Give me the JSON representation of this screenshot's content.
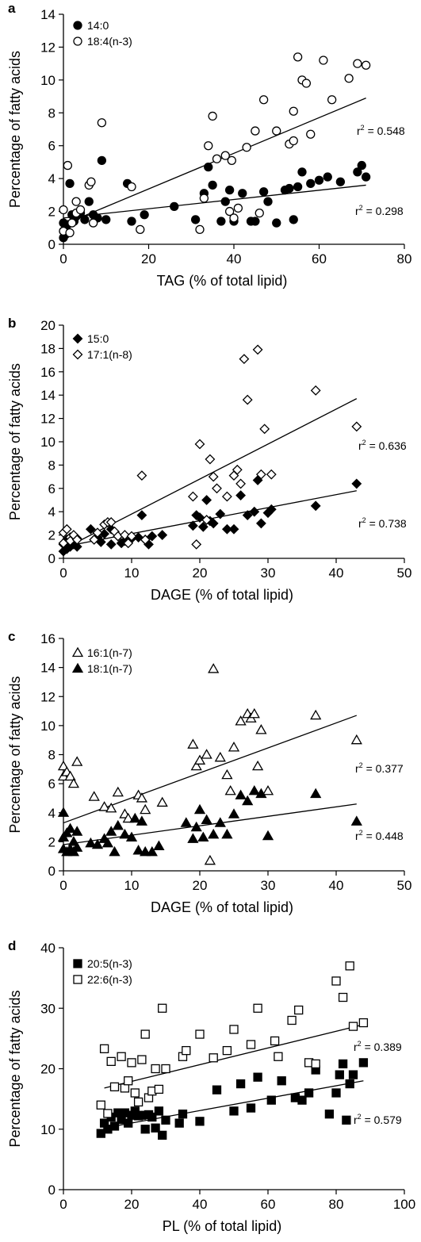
{
  "chart_data": [
    {
      "panel": "a",
      "type": "scatter",
      "xlabel": "TAG (% of total lipid)",
      "ylabel": "Percentage of fatty acids",
      "xlim": [
        0,
        80
      ],
      "ylim": [
        0,
        14
      ],
      "xticks": [
        0,
        20,
        40,
        60,
        80
      ],
      "yticks": [
        0,
        2,
        4,
        6,
        8,
        10,
        12,
        14
      ],
      "legend_position": "top-left",
      "grid": false,
      "series": [
        {
          "name": "14:0",
          "marker": "circle-filled",
          "x": [
            0,
            0,
            0,
            0.5,
            1,
            1.5,
            2,
            2.5,
            3,
            4,
            5,
            6,
            7,
            8,
            9,
            10,
            15,
            16,
            19,
            26,
            31,
            33,
            34,
            35,
            37,
            38,
            39,
            40,
            42,
            44,
            45,
            47,
            48,
            50,
            52,
            53,
            54,
            55,
            56,
            58,
            60,
            62,
            65,
            69,
            70,
            71
          ],
          "y": [
            0.4,
            0.8,
            1.3,
            0.6,
            1.2,
            3.7,
            1.8,
            1.4,
            1.7,
            1.9,
            1.5,
            2.6,
            1.8,
            1.6,
            5.1,
            1.5,
            3.7,
            1.4,
            1.8,
            2.3,
            1.5,
            3.1,
            4.7,
            3.6,
            1.4,
            2.6,
            3.3,
            1.4,
            3.1,
            1.4,
            1.4,
            3.2,
            2.6,
            1.3,
            3.3,
            3.4,
            1.5,
            3.5,
            4.4,
            3.7,
            3.9,
            4.1,
            3.8,
            4.4,
            4.8,
            4.1
          ],
          "trend_start": [
            0,
            1.6
          ],
          "trend_end": [
            71,
            3.6
          ],
          "r2_label": "0.298"
        },
        {
          "name": "18:4(n-3)",
          "marker": "circle-open",
          "x": [
            0,
            0,
            1,
            1.5,
            2,
            3,
            3,
            4,
            6,
            6.5,
            7,
            9,
            16,
            18,
            32,
            33,
            34,
            35,
            36,
            38,
            39,
            39.5,
            40,
            41,
            43,
            45,
            46,
            47,
            50,
            53,
            54,
            54,
            55,
            56,
            57,
            58,
            61,
            63,
            67,
            69,
            71
          ],
          "y": [
            0.8,
            2.1,
            4.8,
            0.7,
            1.3,
            2.6,
            1.9,
            2.1,
            3.6,
            3.8,
            1.3,
            7.4,
            3.5,
            0.9,
            0.9,
            2.8,
            6.0,
            7.8,
            5.2,
            5.4,
            2.0,
            5.1,
            1.6,
            2.2,
            5.9,
            6.9,
            1.9,
            8.8,
            6.9,
            6.1,
            6.3,
            8.1,
            11.4,
            10.0,
            9.8,
            6.7,
            11.2,
            8.8,
            10.1,
            11.0,
            10.9
          ],
          "trend_start": [
            0,
            1.2
          ],
          "trend_end": [
            71,
            8.9
          ],
          "r2_label": "0.548"
        }
      ]
    },
    {
      "panel": "b",
      "type": "scatter",
      "xlabel": "DAGE (% of total lipid)",
      "ylabel": "Percentage of fatty acids",
      "xlim": [
        0,
        50
      ],
      "ylim": [
        0,
        20
      ],
      "xticks": [
        0,
        10,
        20,
        30,
        40,
        50
      ],
      "yticks": [
        0,
        2,
        4,
        6,
        8,
        10,
        12,
        14,
        16,
        18,
        20
      ],
      "legend_position": "top-left",
      "grid": false,
      "series": [
        {
          "name": "15:0",
          "marker": "diamond-filled",
          "x": [
            0,
            0,
            0.5,
            0.5,
            1,
            1,
            1.5,
            2,
            2,
            4,
            5,
            5.5,
            6,
            7,
            7,
            8,
            8.5,
            9,
            10,
            11,
            11.5,
            12,
            12.5,
            13,
            14.5,
            19,
            19.5,
            20,
            20.5,
            21,
            21.5,
            22,
            23,
            24,
            25,
            26,
            27,
            28,
            28.5,
            29,
            30,
            30.5,
            37,
            43
          ],
          "y": [
            0.6,
            1.2,
            0.8,
            1.6,
            1.0,
            1.4,
            1.2,
            1.0,
            1.7,
            2.5,
            1.8,
            1.4,
            2.1,
            1.2,
            2.5,
            1.9,
            1.3,
            1.5,
            1.7,
            1.8,
            3.7,
            1.6,
            1.2,
            1.9,
            2.0,
            2.8,
            3.7,
            3.5,
            2.7,
            5.0,
            3.2,
            3.0,
            3.8,
            2.5,
            2.5,
            5.4,
            3.7,
            4.0,
            6.7,
            3.0,
            3.9,
            4.2,
            4.5,
            6.4
          ],
          "trend_start": [
            0,
            1.0
          ],
          "trend_end": [
            43,
            5.8
          ],
          "r2_label": "0.738"
        },
        {
          "name": "17:1(n-8)",
          "marker": "diamond-open",
          "x": [
            0,
            0,
            0.5,
            1,
            1,
            1.5,
            2,
            4.5,
            5,
            6,
            6.5,
            7,
            7.5,
            8,
            9,
            9.5,
            10,
            11.5,
            12,
            19,
            19.5,
            20,
            21,
            21.5,
            22,
            22.5,
            24,
            25,
            25.5,
            26,
            26.5,
            27,
            28.5,
            29,
            29.5,
            30.5,
            37,
            43
          ],
          "y": [
            2.2,
            1.3,
            2.5,
            1.8,
            1.5,
            2.0,
            1.6,
            1.6,
            2.2,
            2.9,
            3.1,
            3.1,
            2.3,
            1.9,
            2.0,
            1.3,
            1.9,
            7.1,
            1.6,
            5.3,
            1.2,
            9.8,
            3.3,
            8.5,
            7.0,
            6.0,
            5.3,
            7.1,
            7.6,
            6.4,
            17.1,
            13.6,
            17.9,
            7.2,
            11.1,
            7.2,
            14.4,
            11.3
          ],
          "trend_start": [
            0,
            0.8
          ],
          "trend_end": [
            43,
            13.7
          ],
          "r2_label": "0.636"
        }
      ]
    },
    {
      "panel": "c",
      "type": "scatter",
      "xlabel": "DAGE (% of total lipid)",
      "ylabel": "Percentage of fatty acids",
      "xlim": [
        0,
        50
      ],
      "ylim": [
        0,
        16
      ],
      "xticks": [
        0,
        10,
        20,
        30,
        40,
        50
      ],
      "yticks": [
        0,
        2,
        4,
        6,
        8,
        10,
        12,
        14,
        16
      ],
      "legend_position": "top-left",
      "grid": false,
      "series": [
        {
          "name": "16:1(n-7)",
          "marker": "triangle-open",
          "x": [
            0,
            0,
            0.5,
            1,
            1.5,
            2,
            4.5,
            6,
            7,
            8,
            9,
            9.5,
            11,
            11.5,
            12,
            14.5,
            19,
            19.5,
            20,
            21,
            21.5,
            22,
            23,
            24,
            24.5,
            25,
            26,
            27,
            27.5,
            28,
            28.5,
            29,
            30,
            37,
            43
          ],
          "y": [
            7.2,
            6.5,
            6.8,
            6.5,
            6.0,
            7.5,
            5.1,
            4.4,
            4.3,
            5.4,
            3.9,
            3.6,
            5.2,
            5.0,
            4.2,
            4.7,
            8.7,
            7.2,
            7.6,
            8.0,
            0.7,
            13.9,
            7.8,
            6.6,
            5.5,
            8.5,
            10.3,
            10.8,
            10.5,
            10.8,
            7.2,
            9.7,
            5.5,
            10.7,
            9.0
          ],
          "trend_start": [
            0,
            3.3
          ],
          "trend_end": [
            43,
            10.7
          ],
          "r2_label": "0.448"
        },
        {
          "name": "18:1(n-7)",
          "marker": "triangle-filled",
          "x": [
            0,
            0,
            0,
            0.5,
            0.5,
            1,
            1,
            1.5,
            1.5,
            2,
            2,
            4,
            5,
            6,
            6.5,
            7,
            7.5,
            8,
            9,
            10,
            10.5,
            11,
            11.5,
            12,
            13,
            14,
            18,
            19,
            19.5,
            20,
            20.5,
            21,
            22,
            23,
            24,
            25,
            26,
            27,
            28,
            29,
            30,
            37,
            43
          ],
          "y": [
            4.0,
            2.3,
            1.5,
            2.6,
            1.3,
            2.9,
            1.5,
            1.3,
            2.0,
            2.7,
            1.6,
            1.9,
            1.8,
            2.2,
            1.9,
            2.7,
            1.3,
            3.1,
            2.5,
            2.3,
            3.6,
            1.4,
            3.4,
            1.3,
            1.3,
            1.7,
            3.3,
            2.2,
            3.0,
            4.2,
            2.3,
            3.5,
            2.5,
            3.3,
            2.5,
            3.9,
            5.2,
            4.8,
            5.5,
            5.3,
            2.4,
            5.3,
            3.4
          ],
          "trend_start": [
            0,
            1.8
          ],
          "trend_end": [
            43,
            4.6
          ],
          "r2_label": "0.377"
        }
      ]
    },
    {
      "panel": "d",
      "type": "scatter",
      "xlabel": "PL (% of total lipid)",
      "ylabel": "Percentage of fatty acids",
      "xlim": [
        0,
        100
      ],
      "ylim": [
        0,
        40
      ],
      "xticks": [
        0,
        20,
        40,
        60,
        80,
        100
      ],
      "yticks": [
        0,
        10,
        20,
        30,
        40
      ],
      "legend_position": "top-left",
      "grid": false,
      "series": [
        {
          "name": "20:5(n-3)",
          "marker": "square-filled",
          "x": [
            11,
            12,
            13,
            14,
            15,
            16,
            17,
            18,
            19,
            20,
            21,
            22,
            23,
            24,
            25,
            26,
            27,
            28,
            29,
            30,
            34,
            35,
            40,
            45,
            50,
            52,
            55,
            57,
            61,
            64,
            68,
            70,
            72,
            74,
            78,
            80,
            81,
            82,
            83,
            84,
            85,
            88
          ],
          "y": [
            9.3,
            11.0,
            10.0,
            12.0,
            10.5,
            12.7,
            11.6,
            12.7,
            11.0,
            12.3,
            13.0,
            12.2,
            12.3,
            10.0,
            12.4,
            12.0,
            10.2,
            13.0,
            9.0,
            11.5,
            11.0,
            12.5,
            11.3,
            16.5,
            13.0,
            17.5,
            13.5,
            18.6,
            14.8,
            18.0,
            15.2,
            14.8,
            16.0,
            19.8,
            12.5,
            16.0,
            19.0,
            20.8,
            11.5,
            17.5,
            19.0,
            21.0
          ],
          "trend_start": [
            12,
            10.2
          ],
          "trend_end": [
            88,
            18.0
          ],
          "r2_label": "0.579"
        },
        {
          "name": "22:6(n-3)",
          "marker": "square-open",
          "x": [
            11,
            12,
            13,
            14,
            15,
            17,
            18,
            19,
            20,
            21,
            22,
            23,
            24,
            25,
            26,
            27,
            28,
            29,
            30,
            35,
            36,
            40,
            44,
            48,
            50,
            55,
            57,
            62,
            63,
            67,
            69,
            72,
            74,
            80,
            82,
            84,
            85,
            88
          ],
          "y": [
            14.0,
            23.3,
            12.6,
            21.2,
            17.0,
            22.0,
            16.8,
            18.0,
            21.0,
            16.0,
            14.5,
            21.5,
            25.7,
            15.2,
            16.3,
            20.0,
            16.6,
            30.0,
            20.0,
            22.0,
            23.0,
            25.7,
            21.8,
            23.0,
            26.5,
            24.0,
            30.0,
            24.6,
            22.0,
            28.0,
            29.7,
            21.0,
            20.8,
            34.5,
            31.8,
            37.0,
            27.0,
            27.6
          ],
          "trend_start": [
            12,
            16.8
          ],
          "trend_end": [
            88,
            27.3
          ],
          "r2_label": "0.389"
        }
      ]
    }
  ]
}
